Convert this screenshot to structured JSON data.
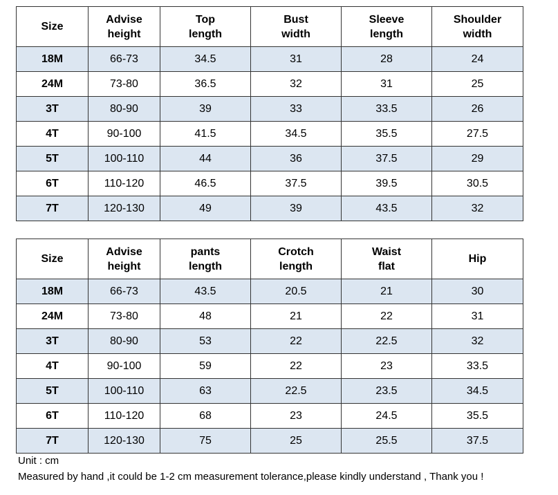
{
  "top_table": {
    "headers": [
      "Size",
      "Advise\nheight",
      "Top\nlength",
      "Bust\nwidth",
      "Sleeve\nlength",
      "Shoulder\nwidth"
    ],
    "rows": [
      [
        "18M",
        "66-73",
        "34.5",
        "31",
        "28",
        "24"
      ],
      [
        "24M",
        "73-80",
        "36.5",
        "32",
        "31",
        "25"
      ],
      [
        "3T",
        "80-90",
        "39",
        "33",
        "33.5",
        "26"
      ],
      [
        "4T",
        "90-100",
        "41.5",
        "34.5",
        "35.5",
        "27.5"
      ],
      [
        "5T",
        "100-110",
        "44",
        "36",
        "37.5",
        "29"
      ],
      [
        "6T",
        "110-120",
        "46.5",
        "37.5",
        "39.5",
        "30.5"
      ],
      [
        "7T",
        "120-130",
        "49",
        "39",
        "43.5",
        "32"
      ]
    ]
  },
  "bottom_table": {
    "headers": [
      "Size",
      "Advise\nheight",
      "pants\nlength",
      "Crotch\nlength",
      "Waist\nflat",
      "Hip"
    ],
    "rows": [
      [
        "18M",
        "66-73",
        "43.5",
        "20.5",
        "21",
        "30"
      ],
      [
        "24M",
        "73-80",
        "48",
        "21",
        "22",
        "31"
      ],
      [
        "3T",
        "80-90",
        "53",
        "22",
        "22.5",
        "32"
      ],
      [
        "4T",
        "90-100",
        "59",
        "22",
        "23",
        "33.5"
      ],
      [
        "5T",
        "100-110",
        "63",
        "22.5",
        "23.5",
        "34.5"
      ],
      [
        "6T",
        "110-120",
        "68",
        "23",
        "24.5",
        "35.5"
      ],
      [
        "7T",
        "120-130",
        "75",
        "25",
        "25.5",
        "37.5"
      ]
    ]
  },
  "notes": {
    "unit": "Unit : cm",
    "tolerance": "Measured by hand ,it could be 1-2 cm measurement tolerance,please kindly understand , Thank you !"
  },
  "colors": {
    "shaded_row": "#dce6f1",
    "border": "#333333"
  }
}
